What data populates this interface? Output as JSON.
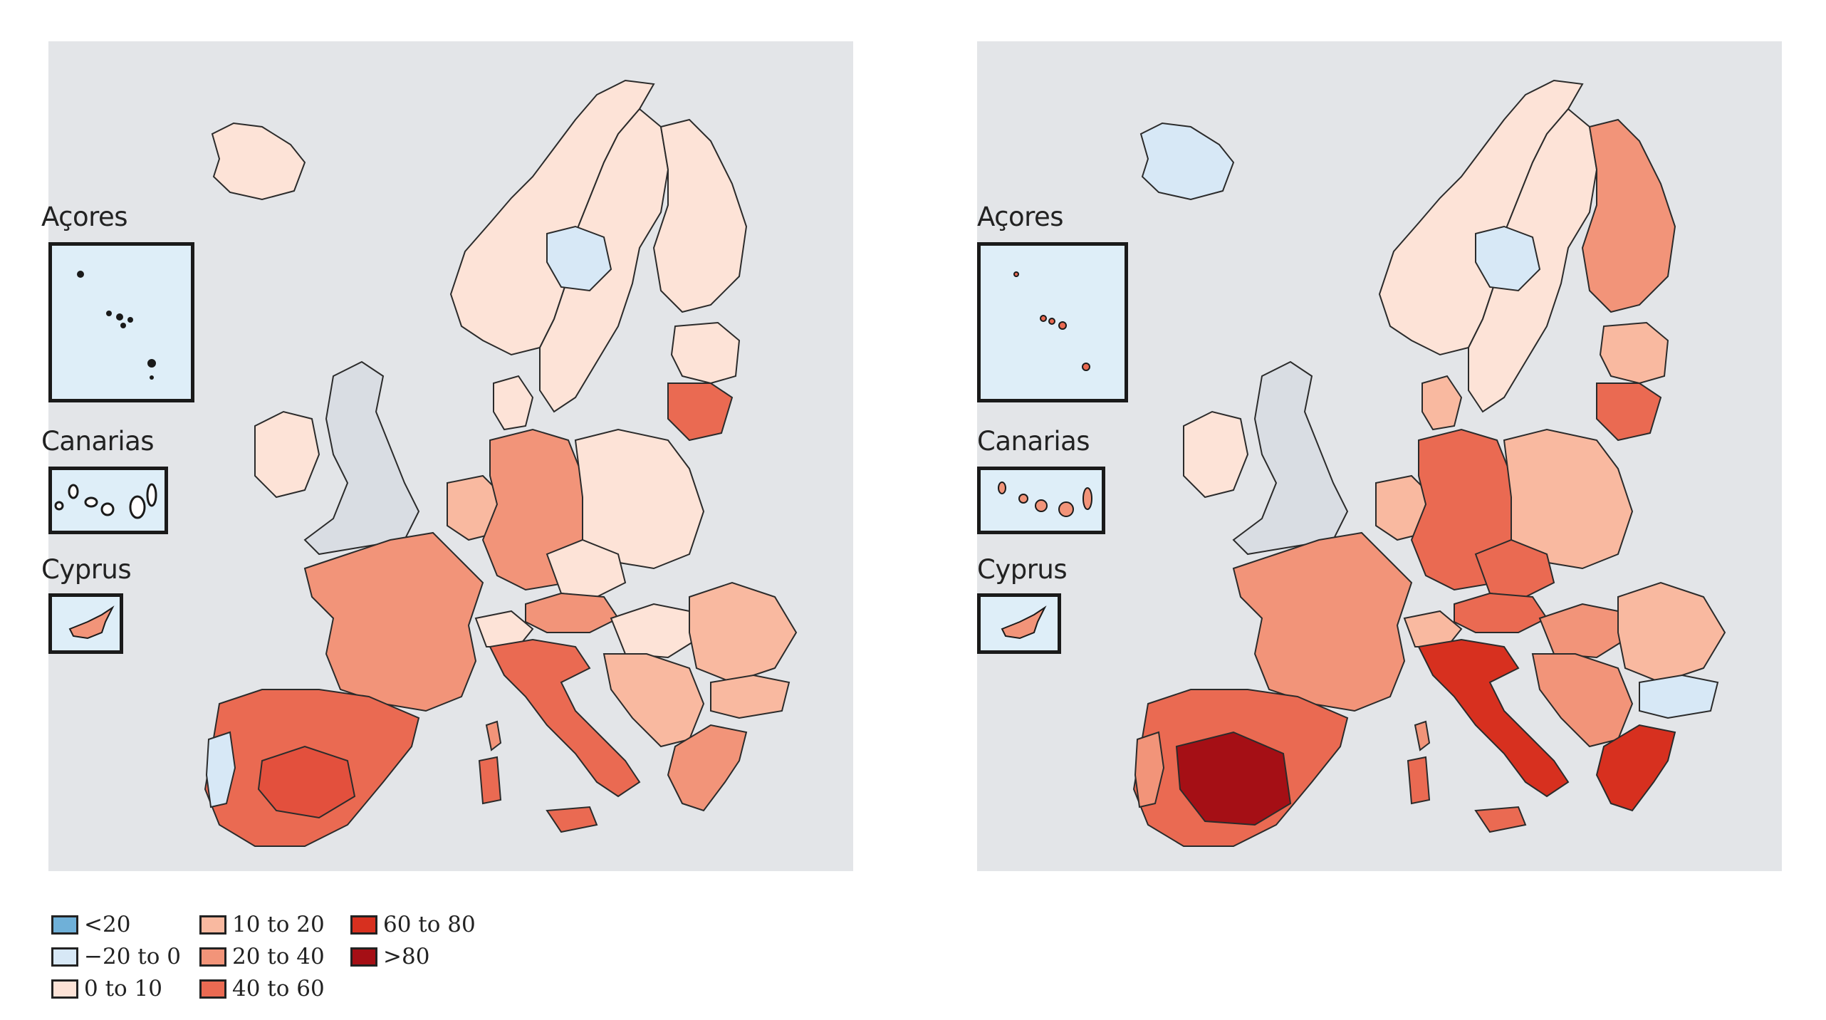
{
  "colors": {
    "sea": "#ffffff",
    "land_bg": "#e3e5e8",
    "border": "#2b2b2b",
    "uk_grey": "#d9dde3"
  },
  "legend": {
    "items": [
      {
        "label": "<20",
        "color": "#6fb0d8"
      },
      {
        "label": "−20 to 0",
        "color": "#d7e8f6"
      },
      {
        "label": "0 to 10",
        "color": "#fde3d7"
      },
      {
        "label": "10 to 20",
        "color": "#f9b9a0"
      },
      {
        "label": "20 to 40",
        "color": "#f29479"
      },
      {
        "label": "40 to 60",
        "color": "#ea6a52"
      },
      {
        "label": "60 to 80",
        "color": "#d7301f"
      },
      {
        "label": ">80",
        "color": "#a50f15"
      }
    ]
  },
  "panels": [
    {
      "insets": {
        "azores": "Açores",
        "canarias": "Canarias",
        "cyprus": "Cyprus"
      },
      "fills": {
        "iceland": "#fde3d7",
        "ireland": "#fde3d7",
        "uk": "#d9dde3",
        "iberia": "#ea6a52",
        "portugal_coast": "#d7e8f6",
        "iberia_core": "#e3503d",
        "france": "#f29479",
        "benelux": "#f9b9a0",
        "germany": "#f29479",
        "poland": "#fde3d7",
        "czechia": "#fde3d7",
        "austria": "#f29479",
        "switzerland": "#fde3d7",
        "italy": "#ea6a52",
        "balkans": "#f9b9a0",
        "hungary": "#fde3d7",
        "romania": "#f9b9a0",
        "bulgaria": "#f9b9a0",
        "greece": "#f29479",
        "norway": "#fde3d7",
        "sweden": "#fde3d7",
        "sweden_blue": "#d7e8f6",
        "finland": "#fde3d7",
        "baltics": "#fde3d7",
        "lithuania": "#ea6a52",
        "denmark": "#fde3d7",
        "sardinia": "#ea6a52",
        "sicily": "#ea6a52",
        "corsica": "#f29479",
        "cyprus": "#f29479",
        "canarias": "#ffffff",
        "azores": "#1a1a1a"
      }
    },
    {
      "insets": {
        "azores": "Açores",
        "canarias": "Canarias",
        "cyprus": "Cyprus"
      },
      "fills": {
        "iceland": "#d7e8f6",
        "ireland": "#fde3d7",
        "uk": "#d9dde3",
        "iberia": "#ea6a52",
        "portugal_coast": "#f29479",
        "iberia_core": "#a50f15",
        "france": "#f29479",
        "benelux": "#f9b9a0",
        "germany": "#ea6a52",
        "poland": "#f9b9a0",
        "czechia": "#ea6a52",
        "austria": "#ea6a52",
        "switzerland": "#f9b9a0",
        "italy": "#d7301f",
        "balkans": "#f29479",
        "hungary": "#f29479",
        "romania": "#f9b9a0",
        "bulgaria": "#d7e8f6",
        "greece": "#d7301f",
        "norway": "#fde3d7",
        "sweden": "#fde3d7",
        "sweden_blue": "#d7e8f6",
        "finland": "#f29479",
        "baltics": "#f9b9a0",
        "lithuania": "#ea6a52",
        "denmark": "#f9b9a0",
        "sardinia": "#ea6a52",
        "sicily": "#ea6a52",
        "corsica": "#f29479",
        "cyprus": "#f29479",
        "canarias": "#f29479",
        "azores": "#ea6a52"
      }
    }
  ]
}
